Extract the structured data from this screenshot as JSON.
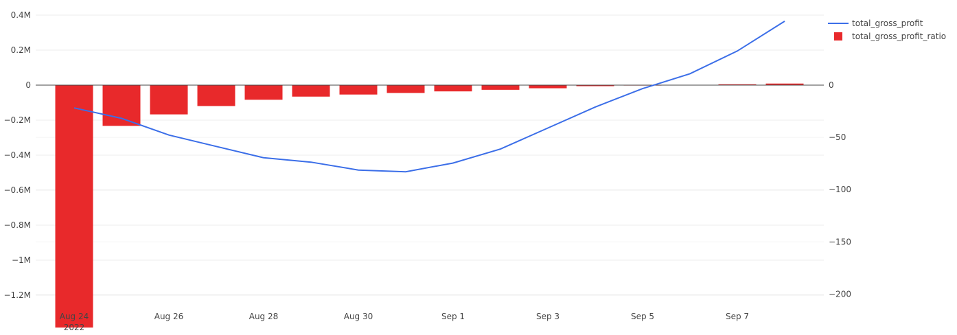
{
  "chart_data": {
    "type": "bar+line",
    "title": "",
    "xlabel": "",
    "x": [
      "2022-08-24",
      "2022-08-25",
      "2022-08-26",
      "2022-08-27",
      "2022-08-28",
      "2022-08-29",
      "2022-08-30",
      "2022-08-31",
      "2022-09-01",
      "2022-09-02",
      "2022-09-03",
      "2022-09-04",
      "2022-09-05",
      "2022-09-06",
      "2022-09-07",
      "2022-09-08"
    ],
    "x_ticks": [
      {
        "date": "2022-08-24",
        "label": "Aug 24",
        "sub": "2022"
      },
      {
        "date": "2022-08-26",
        "label": "Aug 26",
        "sub": ""
      },
      {
        "date": "2022-08-28",
        "label": "Aug 28",
        "sub": ""
      },
      {
        "date": "2022-08-30",
        "label": "Aug 30",
        "sub": ""
      },
      {
        "date": "2022-09-01",
        "label": "Sep 1",
        "sub": ""
      },
      {
        "date": "2022-09-03",
        "label": "Sep 3",
        "sub": ""
      },
      {
        "date": "2022-09-05",
        "label": "Sep 5",
        "sub": ""
      },
      {
        "date": "2022-09-07",
        "label": "Sep 7",
        "sub": ""
      }
    ],
    "y_left": {
      "range": [
        -1200000,
        400000
      ],
      "ticks": [
        400000,
        200000,
        0,
        -200000,
        -400000,
        -600000,
        -800000,
        -1000000,
        -1200000
      ],
      "tick_labels": [
        "0.4M",
        "0.2M",
        "0",
        "−0.2M",
        "−0.4M",
        "−0.6M",
        "−0.8M",
        "−1M",
        "−1.2M"
      ]
    },
    "y_right": {
      "range": [
        -230,
        38
      ],
      "ticks": [
        0,
        -50,
        -100,
        -150,
        -200
      ],
      "tick_labels": [
        "0",
        "−50",
        "−100",
        "−150",
        "−200"
      ]
    },
    "series": [
      {
        "name": "total_gross_profit",
        "type": "line",
        "axis": "left",
        "color": "#3b6ee8",
        "values": [
          -130000,
          -190000,
          -285000,
          -350000,
          -415000,
          -440000,
          -485000,
          -495000,
          -445000,
          -365000,
          -245000,
          -125000,
          -20000,
          65000,
          195000,
          365000
        ]
      },
      {
        "name": "total_gross_profit_ratio",
        "type": "bar",
        "axis": "right",
        "color": "#e8292b",
        "values": [
          -232,
          -39,
          -28,
          -20,
          -14,
          -11,
          -9,
          -7.5,
          -6,
          -4.5,
          -3,
          -1,
          0,
          0.3,
          0.8,
          1.5
        ]
      }
    ],
    "legend": {
      "position": "top-right"
    },
    "grid": true
  }
}
